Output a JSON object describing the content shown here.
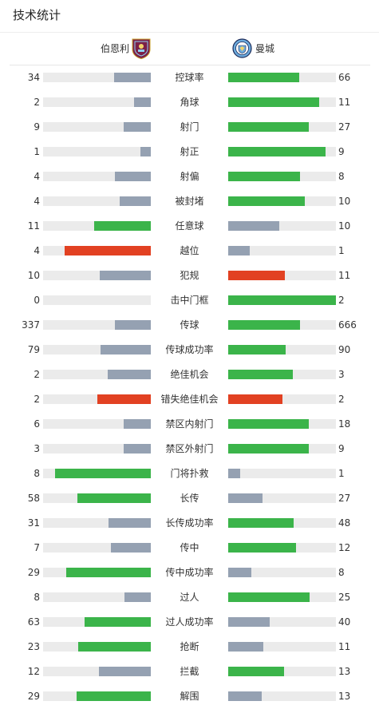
{
  "section_title": "技术统计",
  "teams": {
    "home": {
      "name": "伯恩利",
      "crest_icon": "burnley-crest-icon",
      "crest_color": "#7b1f47"
    },
    "away": {
      "name": "曼城",
      "crest_icon": "man-city-crest-icon",
      "crest_color": "#6cabdd"
    }
  },
  "colors": {
    "win": "#3bb44a",
    "loss": "#e24122",
    "neutral": "#95a1b2",
    "track": "#ebebeb"
  },
  "stats": [
    {
      "label": "控球率",
      "home": "34",
      "away": "66",
      "home_fill": 0.34,
      "away_fill": 0.66,
      "home_color": "neutral",
      "away_color": "win"
    },
    {
      "label": "角球",
      "home": "2",
      "away": "11",
      "home_fill": 0.154,
      "away_fill": 0.846,
      "home_color": "neutral",
      "away_color": "win"
    },
    {
      "label": "射门",
      "home": "9",
      "away": "27",
      "home_fill": 0.25,
      "away_fill": 0.75,
      "home_color": "neutral",
      "away_color": "win"
    },
    {
      "label": "射正",
      "home": "1",
      "away": "9",
      "home_fill": 0.1,
      "away_fill": 0.9,
      "home_color": "neutral",
      "away_color": "win"
    },
    {
      "label": "射偏",
      "home": "4",
      "away": "8",
      "home_fill": 0.333,
      "away_fill": 0.667,
      "home_color": "neutral",
      "away_color": "win"
    },
    {
      "label": "被封堵",
      "home": "4",
      "away": "10",
      "home_fill": 0.286,
      "away_fill": 0.714,
      "home_color": "neutral",
      "away_color": "win"
    },
    {
      "label": "任意球",
      "home": "11",
      "away": "10",
      "home_fill": 0.524,
      "away_fill": 0.476,
      "home_color": "win",
      "away_color": "neutral"
    },
    {
      "label": "越位",
      "home": "4",
      "away": "1",
      "home_fill": 0.8,
      "away_fill": 0.2,
      "home_color": "loss",
      "away_color": "neutral"
    },
    {
      "label": "犯规",
      "home": "10",
      "away": "11",
      "home_fill": 0.476,
      "away_fill": 0.524,
      "home_color": "neutral",
      "away_color": "loss"
    },
    {
      "label": "击中门框",
      "home": "0",
      "away": "2",
      "home_fill": 0.0,
      "away_fill": 1.0,
      "home_color": "neutral",
      "away_color": "win"
    },
    {
      "label": "传球",
      "home": "337",
      "away": "666",
      "home_fill": 0.336,
      "away_fill": 0.664,
      "home_color": "neutral",
      "away_color": "win"
    },
    {
      "label": "传球成功率",
      "home": "79",
      "away": "90",
      "home_fill": 0.467,
      "away_fill": 0.533,
      "home_color": "neutral",
      "away_color": "win"
    },
    {
      "label": "绝佳机会",
      "home": "2",
      "away": "3",
      "home_fill": 0.4,
      "away_fill": 0.6,
      "home_color": "neutral",
      "away_color": "win"
    },
    {
      "label": "错失绝佳机会",
      "home": "2",
      "away": "2",
      "home_fill": 0.5,
      "away_fill": 0.5,
      "home_color": "loss",
      "away_color": "loss"
    },
    {
      "label": "禁区内射门",
      "home": "6",
      "away": "18",
      "home_fill": 0.25,
      "away_fill": 0.75,
      "home_color": "neutral",
      "away_color": "win"
    },
    {
      "label": "禁区外射门",
      "home": "3",
      "away": "9",
      "home_fill": 0.25,
      "away_fill": 0.75,
      "home_color": "neutral",
      "away_color": "win"
    },
    {
      "label": "门将扑救",
      "home": "8",
      "away": "1",
      "home_fill": 0.889,
      "away_fill": 0.111,
      "home_color": "win",
      "away_color": "neutral"
    },
    {
      "label": "长传",
      "home": "58",
      "away": "27",
      "home_fill": 0.682,
      "away_fill": 0.318,
      "home_color": "win",
      "away_color": "neutral"
    },
    {
      "label": "长传成功率",
      "home": "31",
      "away": "48",
      "home_fill": 0.392,
      "away_fill": 0.608,
      "home_color": "neutral",
      "away_color": "win"
    },
    {
      "label": "传中",
      "home": "7",
      "away": "12",
      "home_fill": 0.368,
      "away_fill": 0.632,
      "home_color": "neutral",
      "away_color": "win"
    },
    {
      "label": "传中成功率",
      "home": "29",
      "away": "8",
      "home_fill": 0.784,
      "away_fill": 0.216,
      "home_color": "win",
      "away_color": "neutral"
    },
    {
      "label": "过人",
      "home": "8",
      "away": "25",
      "home_fill": 0.242,
      "away_fill": 0.758,
      "home_color": "neutral",
      "away_color": "win"
    },
    {
      "label": "过人成功率",
      "home": "63",
      "away": "40",
      "home_fill": 0.612,
      "away_fill": 0.388,
      "home_color": "win",
      "away_color": "neutral"
    },
    {
      "label": "抢断",
      "home": "23",
      "away": "11",
      "home_fill": 0.676,
      "away_fill": 0.324,
      "home_color": "win",
      "away_color": "neutral"
    },
    {
      "label": "拦截",
      "home": "12",
      "away": "13",
      "home_fill": 0.48,
      "away_fill": 0.52,
      "home_color": "neutral",
      "away_color": "win"
    },
    {
      "label": "解围",
      "home": "29",
      "away": "13",
      "home_fill": 0.69,
      "away_fill": 0.31,
      "home_color": "win",
      "away_color": "neutral"
    }
  ]
}
